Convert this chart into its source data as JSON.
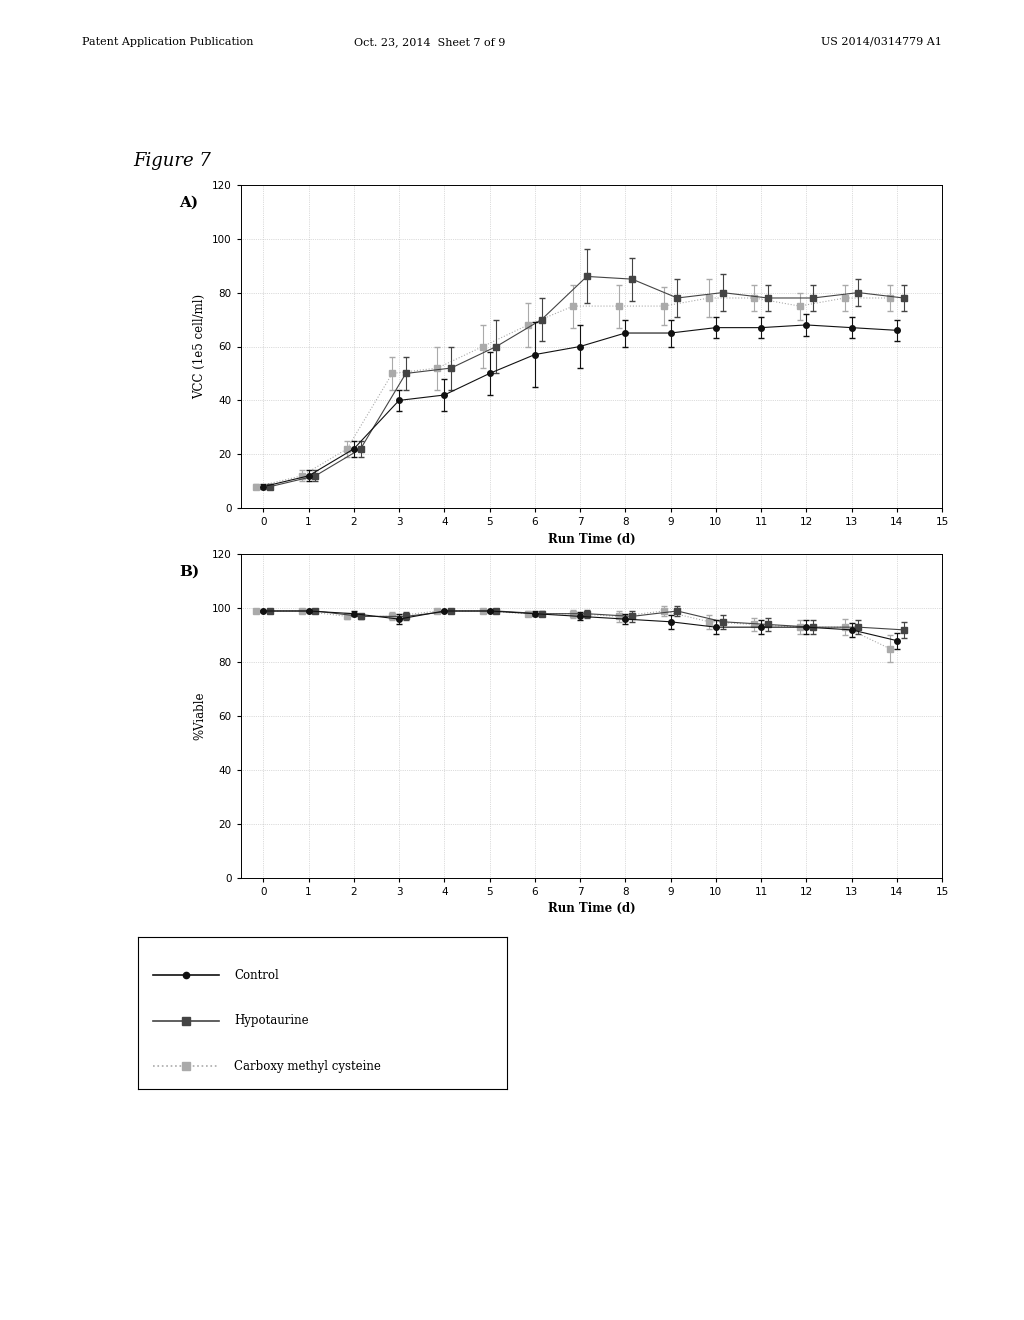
{
  "figure_label": "Figure 7",
  "panel_a_label": "A)",
  "panel_b_label": "B)",
  "xlabel": "Run Time (d)",
  "ylabel_a": "VCC (1e5 cell/ml)",
  "ylabel_b": "%Viable",
  "xlim": [
    -0.5,
    15
  ],
  "ylim_a": [
    0,
    120
  ],
  "ylim_b": [
    0,
    120
  ],
  "yticks_a": [
    0,
    20,
    40,
    60,
    80,
    100,
    120
  ],
  "yticks_b": [
    0,
    20,
    40,
    60,
    80,
    100,
    120
  ],
  "xticks": [
    0,
    1,
    2,
    3,
    4,
    5,
    6,
    7,
    8,
    9,
    10,
    11,
    12,
    13,
    14,
    15
  ],
  "control_color": "#111111",
  "hypo_color": "#444444",
  "carboxy_color": "#aaaaaa",
  "x_days": [
    0,
    1,
    2,
    3,
    4,
    5,
    6,
    7,
    8,
    9,
    10,
    11,
    12,
    13,
    14
  ],
  "vcc_control_mean": [
    8,
    12,
    22,
    40,
    42,
    50,
    57,
    60,
    65,
    65,
    67,
    67,
    68,
    67,
    66
  ],
  "vcc_control_err": [
    1,
    2,
    3,
    4,
    6,
    8,
    12,
    8,
    5,
    5,
    4,
    4,
    4,
    4,
    4
  ],
  "vcc_hypo_mean": [
    8,
    12,
    22,
    50,
    52,
    60,
    70,
    86,
    85,
    78,
    80,
    78,
    78,
    80,
    78
  ],
  "vcc_hypo_err": [
    1,
    2,
    3,
    6,
    8,
    10,
    8,
    10,
    8,
    7,
    7,
    5,
    5,
    5,
    5
  ],
  "vcc_carboxy_mean": [
    8,
    12,
    22,
    50,
    52,
    60,
    68,
    75,
    75,
    75,
    78,
    78,
    75,
    78,
    78
  ],
  "vcc_carboxy_err": [
    1,
    2,
    3,
    6,
    8,
    8,
    8,
    8,
    8,
    7,
    7,
    5,
    5,
    5,
    5
  ],
  "viab_control_mean": [
    99,
    99,
    98,
    96,
    99,
    99,
    98,
    97,
    96,
    95,
    93,
    93,
    93,
    92,
    88
  ],
  "viab_control_err": [
    0.5,
    0.5,
    1,
    2,
    0.5,
    0.5,
    1,
    1.5,
    2,
    2.5,
    2.5,
    2.5,
    2.5,
    2.5,
    3
  ],
  "viab_hypo_mean": [
    99,
    99,
    97,
    97,
    99,
    99,
    98,
    98,
    97,
    99,
    95,
    94,
    93,
    93,
    92
  ],
  "viab_hypo_err": [
    0.5,
    0.5,
    1,
    1.5,
    0.5,
    0.5,
    1,
    1.5,
    2,
    2,
    2.5,
    2.5,
    2.5,
    2.5,
    3
  ],
  "viab_carboxy_mean": [
    99,
    99,
    97,
    97,
    99,
    99,
    98,
    98,
    97,
    99,
    95,
    94,
    93,
    93,
    85
  ],
  "viab_carboxy_err": [
    0.5,
    0.5,
    1,
    1.5,
    0.5,
    0.5,
    1,
    1.5,
    2,
    2,
    2.5,
    2.5,
    2.5,
    3,
    5
  ],
  "legend_labels": [
    "Control",
    "Hypotaurine",
    "Carboxy methyl cysteine"
  ],
  "background_color": "#ffffff",
  "plot_bg_color": "#ffffff",
  "grid_color": "#bbbbbb",
  "header_left": "Patent Application Publication",
  "header_mid": "Oct. 23, 2014  Sheet 7 of 9",
  "header_right": "US 2014/0314779 A1"
}
